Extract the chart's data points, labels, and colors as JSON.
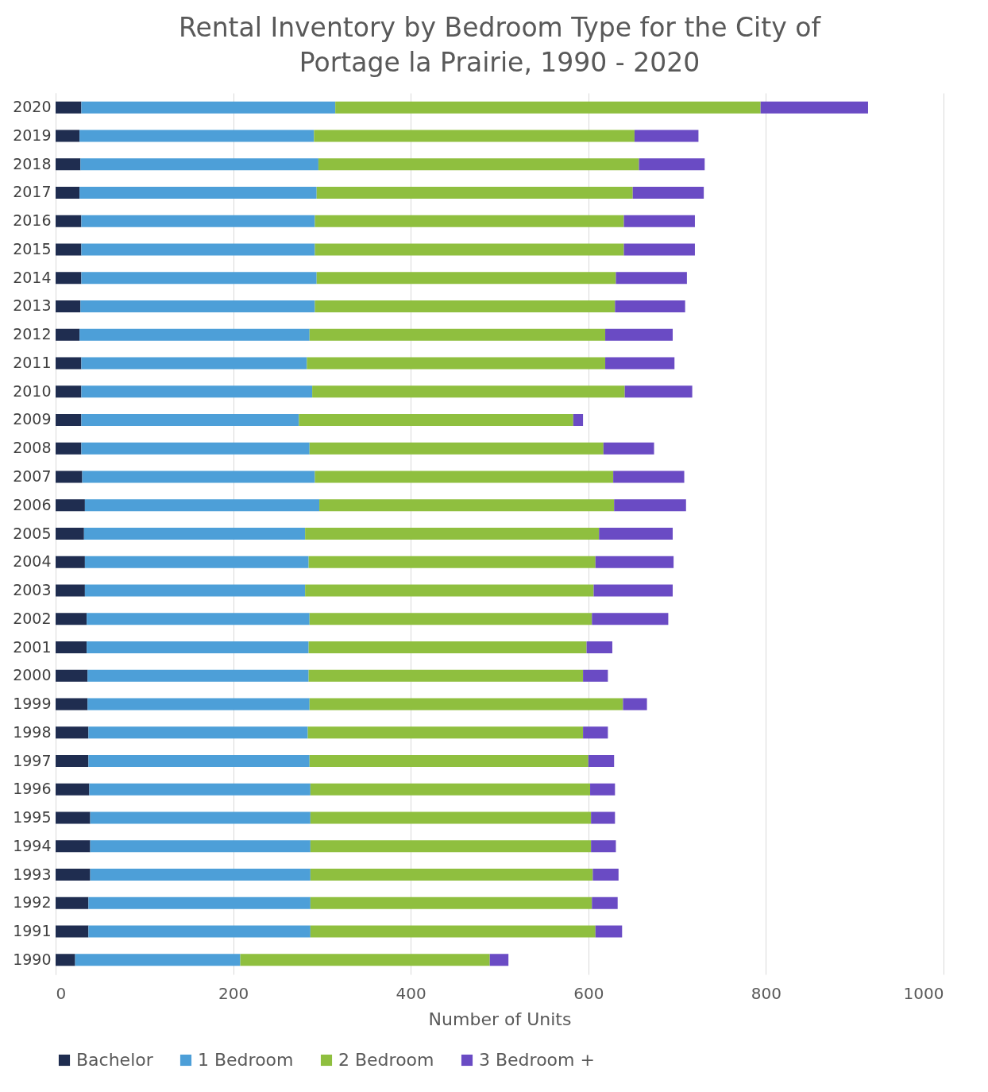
{
  "chart_data": {
    "type": "bar",
    "orientation": "horizontal",
    "stacked": true,
    "title": "Rental Inventory by Bedroom Type for the City of Portage la Prairie, 1990 - 2020",
    "xlabel": "Number of Units",
    "categories": [
      "2020",
      "2019",
      "2018",
      "2017",
      "2016",
      "2015",
      "2014",
      "2013",
      "2012",
      "2011",
      "2010",
      "2009",
      "2008",
      "2007",
      "2006",
      "2005",
      "2004",
      "2003",
      "2002",
      "2001",
      "2000",
      "1999",
      "1998",
      "1997",
      "1996",
      "1995",
      "1994",
      "1993",
      "1992",
      "1991",
      "1990"
    ],
    "series": [
      {
        "name": "Bachelor",
        "color": "#1f2d50",
        "values": [
          29,
          27,
          28,
          27,
          29,
          29,
          29,
          28,
          27,
          29,
          29,
          29,
          29,
          30,
          33,
          32,
          33,
          33,
          35,
          35,
          36,
          36,
          37,
          37,
          38,
          39,
          39,
          39,
          37,
          37,
          22
        ]
      },
      {
        "name": "1 Bedroom",
        "color": "#4d9fd8",
        "values": [
          286,
          264,
          268,
          267,
          263,
          263,
          265,
          264,
          259,
          254,
          260,
          245,
          257,
          262,
          264,
          249,
          252,
          248,
          251,
          250,
          249,
          250,
          247,
          249,
          249,
          248,
          248,
          248,
          250,
          250,
          186
        ]
      },
      {
        "name": "2 Bedroom",
        "color": "#8fbf3f",
        "values": [
          479,
          361,
          361,
          356,
          348,
          348,
          337,
          338,
          333,
          336,
          352,
          309,
          331,
          336,
          332,
          331,
          323,
          325,
          318,
          313,
          309,
          353,
          310,
          314,
          315,
          316,
          316,
          318,
          317,
          321,
          281
        ]
      },
      {
        "name": "3 Bedroom +",
        "color": "#6a4bc4",
        "values": [
          121,
          72,
          74,
          80,
          80,
          80,
          80,
          79,
          76,
          78,
          76,
          11,
          57,
          80,
          81,
          83,
          88,
          89,
          86,
          29,
          28,
          27,
          28,
          29,
          28,
          27,
          28,
          29,
          29,
          30,
          21
        ]
      }
    ],
    "xlim": [
      0,
      1000
    ],
    "xticks": [
      0,
      200,
      400,
      600,
      800,
      1000
    ],
    "grid": "x",
    "legend": "bottom"
  }
}
